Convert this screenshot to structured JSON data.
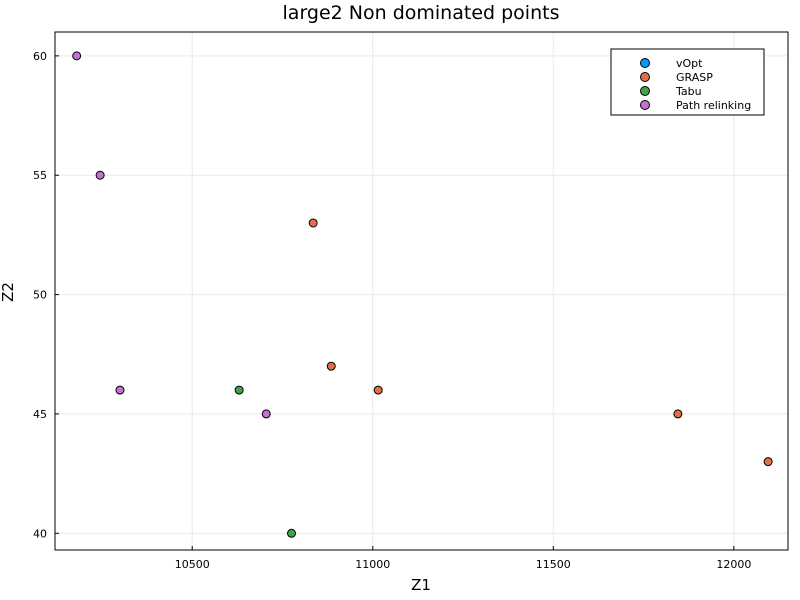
{
  "chart_data": {
    "type": "scatter",
    "title": "large2 Non dominated points",
    "xlabel": "Z1",
    "ylabel": "Z2",
    "xlim": [
      10120,
      12150
    ],
    "ylim": [
      39.3,
      61.0
    ],
    "xticks": [
      10500,
      11000,
      11500,
      12000
    ],
    "yticks": [
      40,
      45,
      50,
      55,
      60
    ],
    "grid": true,
    "legend_position": "top-right",
    "series": [
      {
        "name": "vOpt",
        "color": "#009AFA",
        "points": []
      },
      {
        "name": "GRASP",
        "color": "#E26F46",
        "points": [
          [
            10835,
            53
          ],
          [
            10885,
            47
          ],
          [
            11015,
            46
          ],
          [
            11845,
            45
          ],
          [
            12095,
            43
          ]
        ]
      },
      {
        "name": "Tabu",
        "color": "#3DA44D",
        "points": [
          [
            10630,
            46
          ],
          [
            10775,
            40
          ]
        ]
      },
      {
        "name": "Path relinking",
        "color": "#C271D2",
        "points": [
          [
            10180,
            60
          ],
          [
            10245,
            55
          ],
          [
            10300,
            46
          ],
          [
            10705,
            45
          ]
        ]
      }
    ]
  }
}
